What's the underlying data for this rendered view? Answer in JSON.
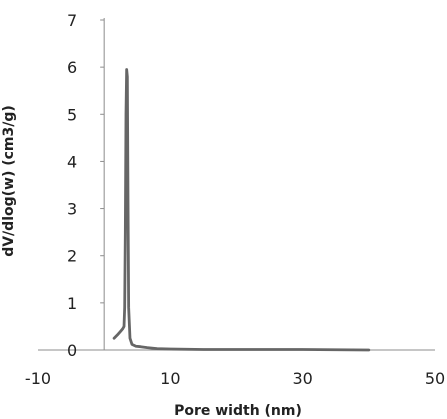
{
  "chart_data": {
    "type": "line",
    "xlabel": "Pore width (nm)",
    "ylabel": "dV/dlog(w) (cm3/g)",
    "xlim": [
      -10,
      50
    ],
    "ylim": [
      0,
      7
    ],
    "x_ticks": [
      -10,
      10,
      30,
      50
    ],
    "y_ticks": [
      0,
      1,
      2,
      3,
      4,
      5,
      6,
      7
    ],
    "grid": false,
    "line_color": "#666666",
    "series": [
      {
        "x": [
          1.5,
          2.0,
          2.5,
          2.8,
          3.0,
          3.1,
          3.2,
          3.3,
          3.4,
          3.5,
          3.6,
          3.7,
          3.9,
          4.2,
          4.8,
          5.5,
          6.5,
          8.0,
          10.0,
          15.0,
          20.0,
          30.0,
          40.0
        ],
        "y": [
          0.25,
          0.32,
          0.4,
          0.45,
          0.5,
          0.9,
          2.5,
          5.0,
          5.95,
          5.8,
          3.2,
          0.9,
          0.25,
          0.12,
          0.08,
          0.07,
          0.05,
          0.03,
          0.02,
          0.01,
          0.01,
          0.01,
          0.0
        ]
      }
    ]
  }
}
